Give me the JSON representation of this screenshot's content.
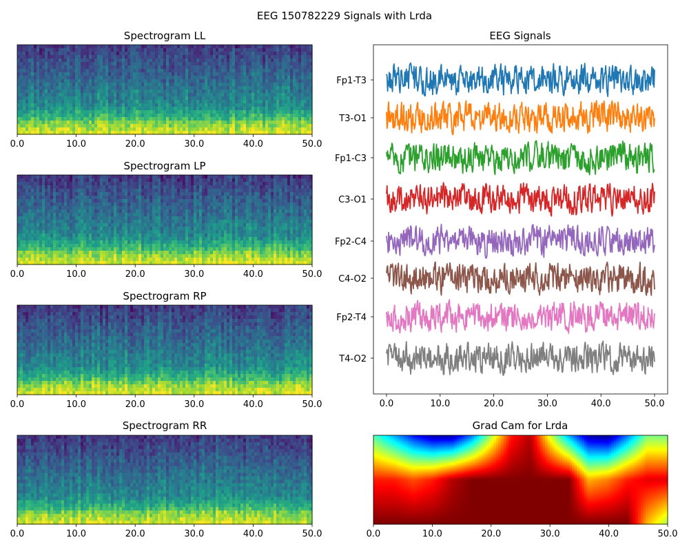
{
  "figure": {
    "title": "EEG 150782229 Signals with Lrda"
  },
  "chart_data": [
    {
      "type": "heatmap",
      "title": "Spectrogram LL",
      "xlim": [
        0,
        50
      ],
      "xticks": [
        "0.0",
        "10.0",
        "20.0",
        "30.0",
        "40.0",
        "50.0"
      ],
      "colormap": "viridis",
      "description_of_values": "log power; high (yellow) at low frequencies at bottom, low (purple) at top"
    },
    {
      "type": "heatmap",
      "title": "Spectrogram LP",
      "xlim": [
        0,
        50
      ],
      "xticks": [
        "0.0",
        "10.0",
        "20.0",
        "30.0",
        "40.0",
        "50.0"
      ],
      "colormap": "viridis"
    },
    {
      "type": "heatmap",
      "title": "Spectrogram RP",
      "xlim": [
        0,
        50
      ],
      "xticks": [
        "0.0",
        "10.0",
        "20.0",
        "30.0",
        "40.0",
        "50.0"
      ],
      "colormap": "viridis"
    },
    {
      "type": "heatmap",
      "title": "Spectrogram RR",
      "xlim": [
        0,
        50
      ],
      "xticks": [
        "0.0",
        "10.0",
        "20.0",
        "30.0",
        "40.0",
        "50.0"
      ],
      "colormap": "viridis"
    },
    {
      "type": "line",
      "title": "EEG Signals",
      "xlim": [
        0,
        50
      ],
      "xticks": [
        "0.0",
        "10.0",
        "20.0",
        "30.0",
        "40.0",
        "50.0"
      ],
      "series": [
        {
          "name": "Fp1-T3",
          "color": "#1f77b4"
        },
        {
          "name": "T3-O1",
          "color": "#ff7f0e"
        },
        {
          "name": "Fp1-C3",
          "color": "#2ca02c"
        },
        {
          "name": "C3-O1",
          "color": "#d62728"
        },
        {
          "name": "Fp2-C4",
          "color": "#9467bd"
        },
        {
          "name": "C4-O2",
          "color": "#8c564b"
        },
        {
          "name": "Fp2-T4",
          "color": "#e377c2"
        },
        {
          "name": "T4-O2",
          "color": "#7f7f7f"
        }
      ]
    },
    {
      "type": "heatmap",
      "title": "Grad Cam for Lrda",
      "xlim": [
        0,
        50
      ],
      "xticks": [
        "0.0",
        "10.0",
        "20.0",
        "30.0",
        "40.0",
        "50.0"
      ],
      "colormap": "jet",
      "top_row_activation_profile": [
        0.45,
        0.3,
        0.15,
        0.05,
        0.05,
        0.25,
        0.55,
        0.85,
        0.95,
        0.6,
        0.3,
        0.05,
        0.02,
        0.25,
        0.5,
        0.5
      ],
      "middle_row_activation_profile": [
        0.85,
        0.85,
        0.8,
        0.85,
        0.95,
        1.0,
        1.0,
        1.0,
        1.0,
        1.0,
        1.0,
        0.7,
        0.75,
        0.85,
        0.9,
        0.9
      ],
      "bottom_row_activation_profile": [
        1.0,
        1.0,
        1.0,
        1.0,
        1.0,
        1.0,
        1.0,
        1.0,
        1.0,
        1.0,
        1.0,
        1.0,
        1.0,
        1.0,
        0.7,
        0.55
      ]
    }
  ]
}
